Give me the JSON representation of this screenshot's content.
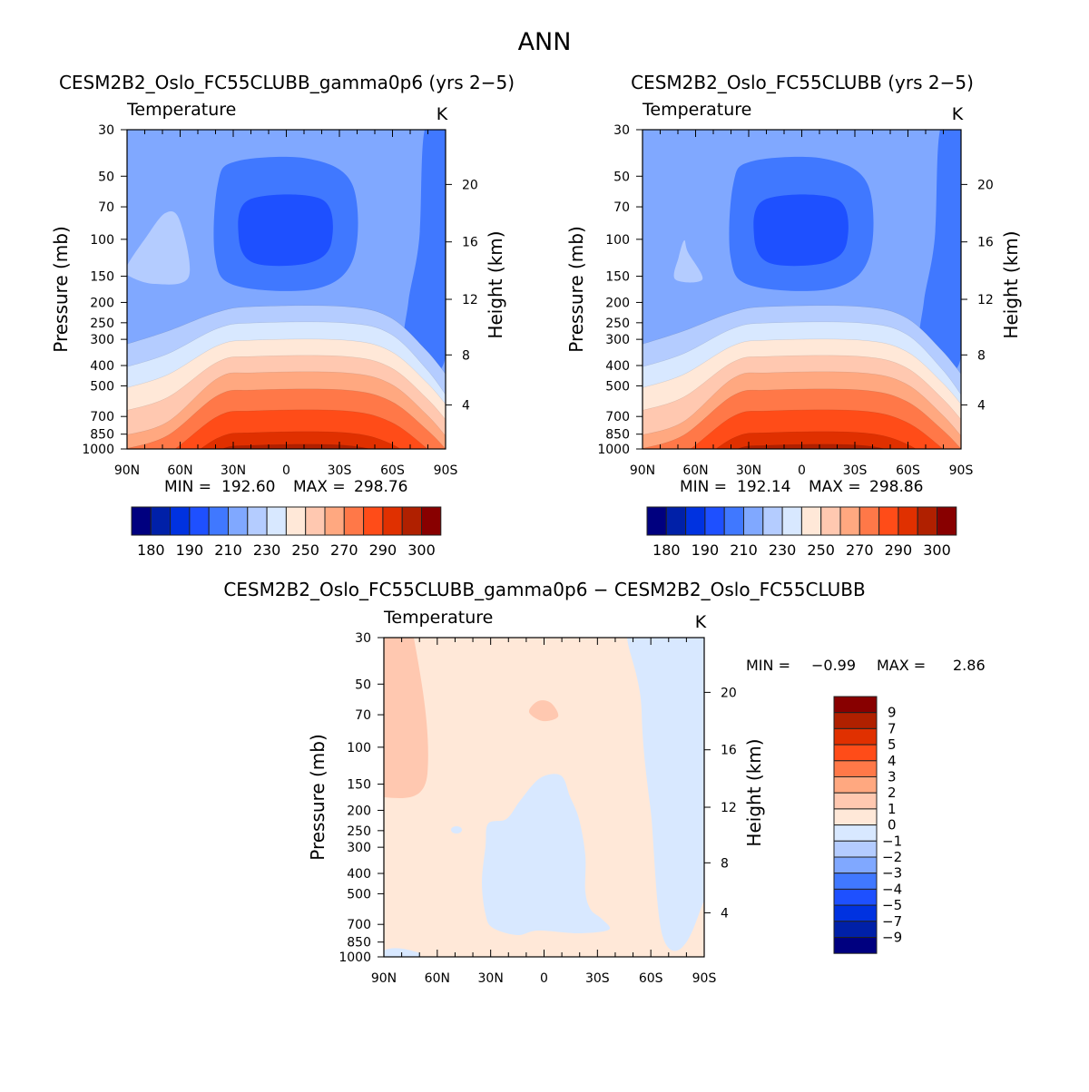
{
  "chart_data": {
    "type": "heatmap",
    "title": "ANN",
    "panels": [
      {
        "id": "model-a",
        "title": "CESM2B2_Oslo_FC55CLUBB_gamma0p6 (yrs 2−5)",
        "variable": "Temperature",
        "units": "K",
        "xlabel": "",
        "ylabel": "Pressure (mb)",
        "y2label": "Height (km)",
        "xticks": [
          "90N",
          "60N",
          "30N",
          "0",
          "30S",
          "60S",
          "90S"
        ],
        "yticks": [
          30,
          50,
          70,
          100,
          150,
          200,
          250,
          300,
          400,
          500,
          700,
          850,
          1000
        ],
        "y2ticks": [
          4,
          8,
          12,
          16,
          20
        ],
        "ylim": [
          1000,
          30
        ],
        "min_label": "MIN =",
        "min": "192.60",
        "max_label": "MAX =",
        "max": "298.76",
        "colorbar_labels": [
          "180",
          "190",
          "210",
          "230",
          "250",
          "270",
          "290",
          "300"
        ]
      },
      {
        "id": "model-b",
        "title": "CESM2B2_Oslo_FC55CLUBB (yrs 2−5)",
        "variable": "Temperature",
        "units": "K",
        "xlabel": "",
        "ylabel": "Pressure (mb)",
        "y2label": "Height (km)",
        "xticks": [
          "90N",
          "60N",
          "30N",
          "0",
          "30S",
          "60S",
          "90S"
        ],
        "yticks": [
          30,
          50,
          70,
          100,
          150,
          200,
          250,
          300,
          400,
          500,
          700,
          850,
          1000
        ],
        "y2ticks": [
          4,
          8,
          12,
          16,
          20
        ],
        "ylim": [
          1000,
          30
        ],
        "min_label": "MIN =",
        "min": "192.14",
        "max_label": "MAX =",
        "max": "298.86",
        "colorbar_labels": [
          "180",
          "190",
          "210",
          "230",
          "250",
          "270",
          "290",
          "300"
        ]
      },
      {
        "id": "difference",
        "title": "CESM2B2_Oslo_FC55CLUBB_gamma0p6 − CESM2B2_Oslo_FC55CLUBB",
        "variable": "Temperature",
        "units": "K",
        "xlabel": "",
        "ylabel": "Pressure (mb)",
        "y2label": "Height (km)",
        "xticks": [
          "90N",
          "60N",
          "30N",
          "0",
          "30S",
          "60S",
          "90S"
        ],
        "yticks": [
          30,
          50,
          70,
          100,
          150,
          200,
          250,
          300,
          400,
          500,
          700,
          850,
          1000
        ],
        "y2ticks": [
          4,
          8,
          12,
          16,
          20
        ],
        "ylim": [
          1000,
          30
        ],
        "min_label": "MIN =",
        "min": "−0.99",
        "max_label": "MAX =",
        "max": "2.86",
        "colorbar_labels": [
          "9",
          "7",
          "5",
          "4",
          "3",
          "2",
          "1",
          "0",
          "−1",
          "−2",
          "−3",
          "−4",
          "−5",
          "−7",
          "−9"
        ]
      }
    ],
    "colormap": [
      "#00007f",
      "#0020a8",
      "#0032e0",
      "#1e50ff",
      "#4078ff",
      "#80a8ff",
      "#b4ccff",
      "#d8e8ff",
      "#ffe8d8",
      "#ffc8b0",
      "#ffa880",
      "#ff7848",
      "#ff4c18",
      "#e03000",
      "#b02000",
      "#880000"
    ]
  }
}
